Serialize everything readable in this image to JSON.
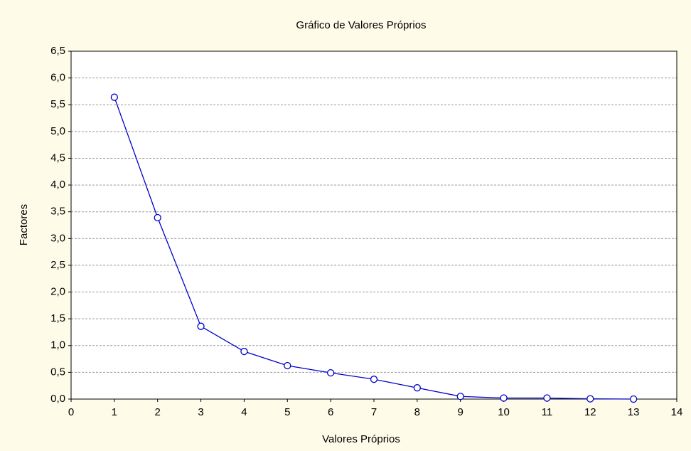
{
  "chart_data": {
    "type": "line",
    "title": "Gráfico de Valores Próprios",
    "x_label": "Valores Próprios",
    "y_label": "Factores",
    "x": [
      1,
      2,
      3,
      4,
      5,
      6,
      7,
      8,
      9,
      10,
      11,
      12,
      13
    ],
    "series": [
      {
        "name": "Valores Próprios",
        "color": "#0000cc",
        "values": [
          5.64,
          3.39,
          1.36,
          0.89,
          0.625,
          0.49,
          0.37,
          0.21,
          0.05,
          0.02,
          0.02,
          0.005,
          0
        ]
      }
    ],
    "xlim": [
      0,
      14
    ],
    "xticks": [
      0,
      1,
      2,
      3,
      4,
      5,
      6,
      7,
      8,
      9,
      10,
      11,
      12,
      13,
      14
    ],
    "ylim": [
      0,
      6.5
    ],
    "yticks": [
      {
        "value": 0,
        "label": "0,0"
      },
      {
        "value": 0.5,
        "label": "0,5"
      },
      {
        "value": 1,
        "label": "1,0"
      },
      {
        "value": 1.5,
        "label": "1,5"
      },
      {
        "value": 2,
        "label": "2,0"
      },
      {
        "value": 2.5,
        "label": "2,5"
      },
      {
        "value": 3,
        "label": "3,0"
      },
      {
        "value": 3.5,
        "label": "3,5"
      },
      {
        "value": 4,
        "label": "4,0"
      },
      {
        "value": 4.5,
        "label": "4,5"
      },
      {
        "value": 5,
        "label": "5,0"
      },
      {
        "value": 5.5,
        "label": "5,5"
      },
      {
        "value": 6,
        "label": "6,0"
      },
      {
        "value": 6.5,
        "label": "6,5"
      }
    ],
    "grid": true
  }
}
